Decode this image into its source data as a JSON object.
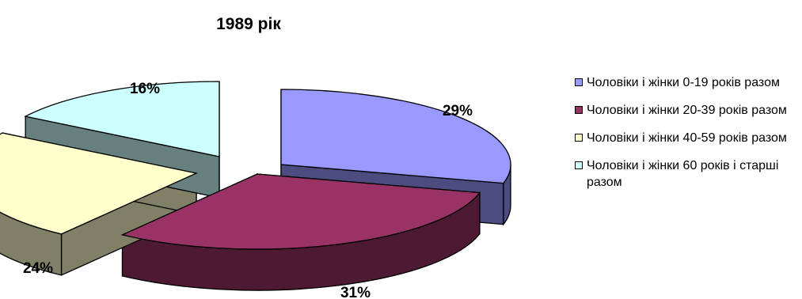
{
  "chart_data": {
    "type": "pie",
    "title": "1989 рік",
    "categories": [
      "Чоловіки і жінки 0-19 років разом",
      "Чоловіки і жінки 20-39 років разом",
      "Чоловіки і жінки 40-59 років разом",
      "Чоловіки і жінки 60 років і старші разом"
    ],
    "values": [
      29,
      31,
      24,
      16
    ],
    "value_labels": [
      "29%",
      "31%",
      "24%",
      "16%"
    ],
    "colors": [
      "#9999ff",
      "#993366",
      "#ffffcc",
      "#ccffff"
    ],
    "side_colors": [
      "#4c4c80",
      "#4d1933",
      "#808066",
      "#668080"
    ],
    "style": "3d-exploded",
    "legend_position": "right"
  }
}
